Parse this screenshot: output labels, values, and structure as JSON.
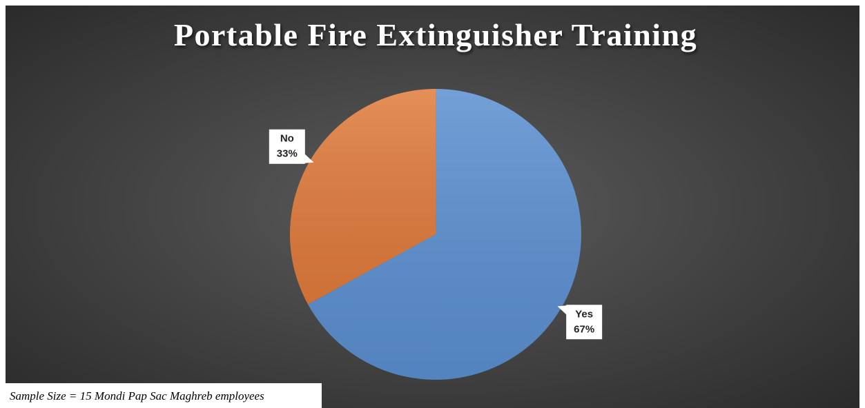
{
  "chart_data": {
    "type": "pie",
    "title": "Portable Fire Extinguisher Training",
    "categories": [
      "Yes",
      "No"
    ],
    "values": [
      67,
      33
    ],
    "value_labels": [
      "67%",
      "33%"
    ],
    "colors": [
      "#5b8fd0",
      "#e07b3c"
    ],
    "annotation": "Sample Size = 15 Mondi Pap Sac Maghreb employees"
  }
}
